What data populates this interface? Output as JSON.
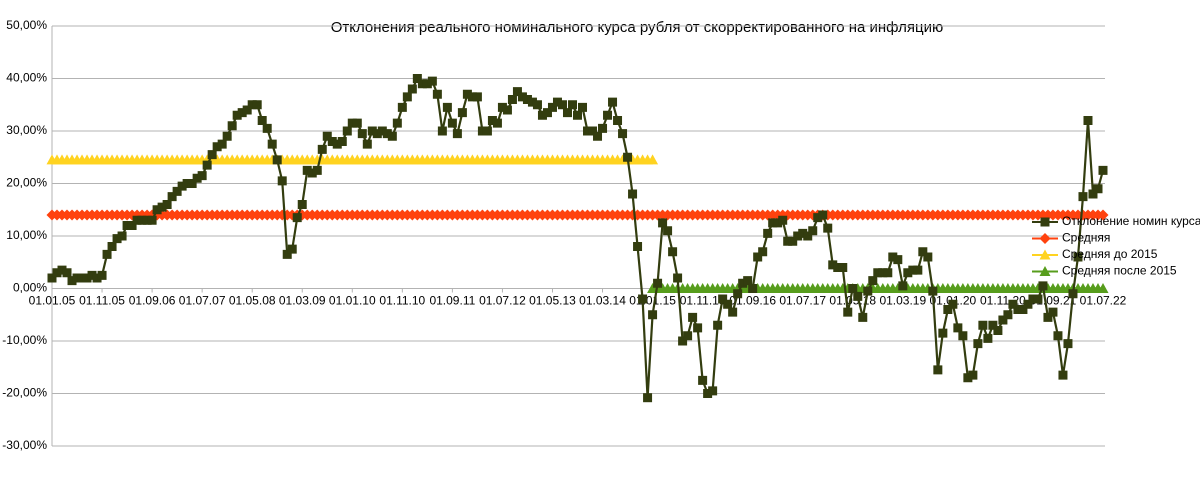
{
  "chart_data": {
    "type": "line",
    "title": "Отклонения реального номинального курса рубля от скорректированного на инфляцию",
    "categories": [
      "01.01.05",
      null,
      null,
      null,
      null,
      null,
      null,
      null,
      null,
      null,
      "01.11.05",
      null,
      null,
      null,
      null,
      null,
      null,
      null,
      null,
      null,
      "01.09.06",
      null,
      null,
      null,
      null,
      null,
      null,
      null,
      null,
      null,
      "01.07.07",
      null,
      null,
      null,
      null,
      null,
      null,
      null,
      null,
      null,
      "01.05.08",
      null,
      null,
      null,
      null,
      null,
      null,
      null,
      null,
      null,
      "01.03.09",
      null,
      null,
      null,
      null,
      null,
      null,
      null,
      null,
      null,
      "01.01.10",
      null,
      null,
      null,
      null,
      null,
      null,
      null,
      null,
      null,
      "01.11.10",
      null,
      null,
      null,
      null,
      null,
      null,
      null,
      null,
      null,
      "01.09.11",
      null,
      null,
      null,
      null,
      null,
      null,
      null,
      null,
      null,
      "01.07.12",
      null,
      null,
      null,
      null,
      null,
      null,
      null,
      null,
      null,
      "01.05.13",
      null,
      null,
      null,
      null,
      null,
      null,
      null,
      null,
      null,
      "01.03.14",
      null,
      null,
      null,
      null,
      null,
      null,
      null,
      null,
      null,
      "01.01.15",
      null,
      null,
      null,
      null,
      null,
      null,
      null,
      null,
      null,
      "01.11.15",
      null,
      null,
      null,
      null,
      null,
      null,
      null,
      null,
      null,
      "01.09.16",
      null,
      null,
      null,
      null,
      null,
      null,
      null,
      null,
      null,
      "01.07.17",
      null,
      null,
      null,
      null,
      null,
      null,
      null,
      null,
      null,
      "01.05.18",
      null,
      null,
      null,
      null,
      null,
      null,
      null,
      null,
      null,
      "01.03.19",
      null,
      null,
      null,
      null,
      null,
      null,
      null,
      null,
      null,
      "01.01.20",
      null,
      null,
      null,
      null,
      null,
      null,
      null,
      null,
      null,
      "01.11.20",
      null,
      null,
      null,
      null,
      null,
      null,
      null,
      null,
      null,
      "01.09.21",
      null,
      null,
      null,
      null,
      null,
      null,
      null,
      null,
      null,
      "01.07.22"
    ],
    "series": [
      {
        "name": "Отклонение номин курса с",
        "color": "#333d0f",
        "marker": "square",
        "values": [
          2,
          3,
          3.5,
          3,
          1.5,
          2,
          2,
          2,
          2.5,
          2,
          2.5,
          6.5,
          8,
          9.5,
          10,
          12,
          12,
          13,
          13,
          13,
          13,
          15,
          15.5,
          16,
          17.5,
          18.5,
          19.5,
          20,
          20,
          21,
          21.5,
          23.5,
          25.5,
          27,
          27.5,
          29,
          31,
          33,
          33.5,
          34,
          35,
          35,
          32,
          30.5,
          27.5,
          24.5,
          20.5,
          6.5,
          7.5,
          13.5,
          16,
          22.5,
          22,
          22.5,
          26.5,
          29,
          28,
          27.5,
          28,
          30,
          31.5,
          31.5,
          29.5,
          27.5,
          30,
          29.5,
          30,
          29.5,
          29,
          31.5,
          34.5,
          36.5,
          38,
          40,
          39,
          39,
          39.5,
          37,
          30,
          34.5,
          31.5,
          29.5,
          33.5,
          37,
          36.5,
          36.5,
          30,
          30,
          32,
          31.5,
          34.5,
          34,
          36,
          37.5,
          36.5,
          36,
          35.5,
          35,
          33,
          33.5,
          34.5,
          35.5,
          35,
          33.5,
          35,
          33,
          34.5,
          30,
          30,
          29,
          30.5,
          33,
          35.5,
          32,
          29.5,
          25,
          18,
          8,
          -2,
          -20.8,
          -5,
          1,
          12.5,
          11,
          7,
          2,
          -10,
          -9,
          -5.5,
          -7.5,
          -17.5,
          -20,
          -19.5,
          -7,
          -2,
          -3,
          -4.5,
          -1,
          1,
          1.5,
          0,
          6,
          7,
          10.5,
          12.5,
          12.5,
          13,
          9,
          9,
          10,
          10.5,
          10,
          11,
          13.5,
          14,
          11.5,
          4.5,
          4,
          4,
          -4.5,
          0,
          -1.5,
          -5.5,
          -0.5,
          1.5,
          3,
          3,
          3,
          6,
          5.5,
          0.5,
          3,
          3.5,
          3.5,
          7,
          6,
          -0.5,
          -15.5,
          -8.5,
          -4,
          -3,
          -7.5,
          -9,
          -17,
          -16.5,
          -10.5,
          -7,
          -9.5,
          -7,
          -8,
          -6,
          -5,
          -3,
          -4,
          -4,
          -3,
          -2,
          -2,
          0.5,
          -5.5,
          -4.5,
          -9,
          -16.5,
          -10.5,
          -1,
          6,
          17.5,
          32,
          18,
          19,
          22.5
        ]
      },
      {
        "name": "Средняя",
        "color": "#ff420e",
        "marker": "diamond",
        "values": [
          14,
          14,
          14,
          14,
          14,
          14,
          14,
          14,
          14,
          14,
          14,
          14,
          14,
          14,
          14,
          14,
          14,
          14,
          14,
          14,
          14,
          14,
          14,
          14,
          14,
          14,
          14,
          14,
          14,
          14,
          14,
          14,
          14,
          14,
          14,
          14,
          14,
          14,
          14,
          14,
          14,
          14,
          14,
          14,
          14,
          14,
          14,
          14,
          14,
          14,
          14,
          14,
          14,
          14,
          14,
          14,
          14,
          14,
          14,
          14,
          14,
          14,
          14,
          14,
          14,
          14,
          14,
          14,
          14,
          14,
          14,
          14,
          14,
          14,
          14,
          14,
          14,
          14,
          14,
          14,
          14,
          14,
          14,
          14,
          14,
          14,
          14,
          14,
          14,
          14,
          14,
          14,
          14,
          14,
          14,
          14,
          14,
          14,
          14,
          14,
          14,
          14,
          14,
          14,
          14,
          14,
          14,
          14,
          14,
          14,
          14,
          14,
          14,
          14,
          14,
          14,
          14,
          14,
          14,
          14,
          14,
          14,
          14,
          14,
          14,
          14,
          14,
          14,
          14,
          14,
          14,
          14,
          14,
          14,
          14,
          14,
          14,
          14,
          14,
          14,
          14,
          14,
          14,
          14,
          14,
          14,
          14,
          14,
          14,
          14,
          14,
          14,
          14,
          14,
          14,
          14,
          14,
          14,
          14,
          14,
          14,
          14,
          14,
          14,
          14,
          14,
          14,
          14,
          14,
          14,
          14,
          14,
          14,
          14,
          14,
          14,
          14,
          14,
          14,
          14,
          14,
          14,
          14,
          14,
          14,
          14,
          14,
          14,
          14,
          14,
          14,
          14,
          14,
          14,
          14,
          14,
          14,
          14,
          14,
          14,
          14,
          14,
          14,
          14,
          14,
          14,
          14,
          14,
          14,
          14,
          14
        ]
      },
      {
        "name": "Средняя до 2015",
        "color": "#ffd320",
        "marker": "triangle",
        "values": [
          24.5,
          24.5,
          24.5,
          24.5,
          24.5,
          24.5,
          24.5,
          24.5,
          24.5,
          24.5,
          24.5,
          24.5,
          24.5,
          24.5,
          24.5,
          24.5,
          24.5,
          24.5,
          24.5,
          24.5,
          24.5,
          24.5,
          24.5,
          24.5,
          24.5,
          24.5,
          24.5,
          24.5,
          24.5,
          24.5,
          24.5,
          24.5,
          24.5,
          24.5,
          24.5,
          24.5,
          24.5,
          24.5,
          24.5,
          24.5,
          24.5,
          24.5,
          24.5,
          24.5,
          24.5,
          24.5,
          24.5,
          24.5,
          24.5,
          24.5,
          24.5,
          24.5,
          24.5,
          24.5,
          24.5,
          24.5,
          24.5,
          24.5,
          24.5,
          24.5,
          24.5,
          24.5,
          24.5,
          24.5,
          24.5,
          24.5,
          24.5,
          24.5,
          24.5,
          24.5,
          24.5,
          24.5,
          24.5,
          24.5,
          24.5,
          24.5,
          24.5,
          24.5,
          24.5,
          24.5,
          24.5,
          24.5,
          24.5,
          24.5,
          24.5,
          24.5,
          24.5,
          24.5,
          24.5,
          24.5,
          24.5,
          24.5,
          24.5,
          24.5,
          24.5,
          24.5,
          24.5,
          24.5,
          24.5,
          24.5,
          24.5,
          24.5,
          24.5,
          24.5,
          24.5,
          24.5,
          24.5,
          24.5,
          24.5,
          24.5,
          24.5,
          24.5,
          24.5,
          24.5,
          24.5,
          24.5,
          24.5,
          24.5,
          24.5,
          24.5,
          24.5,
          null,
          null,
          null,
          null,
          null,
          null,
          null,
          null,
          null,
          null,
          null,
          null,
          null,
          null,
          null,
          null,
          null,
          null,
          null,
          null,
          null,
          null,
          null,
          null,
          null,
          null,
          null,
          null,
          null,
          null,
          null,
          null,
          null,
          null,
          null,
          null,
          null,
          null,
          null,
          null,
          null,
          null,
          null,
          null,
          null,
          null,
          null,
          null,
          null,
          null,
          null,
          null,
          null,
          null,
          null,
          null,
          null,
          null,
          null,
          null,
          null,
          null,
          null,
          null,
          null,
          null,
          null,
          null,
          null,
          null,
          null,
          null,
          null,
          null,
          null,
          null,
          null,
          null,
          null,
          null,
          null,
          null,
          null,
          null,
          null,
          null,
          null,
          null,
          null,
          null
        ]
      },
      {
        "name": "Средняя  после 2015",
        "color": "#579d1c",
        "marker": "triangle",
        "values": [
          null,
          null,
          null,
          null,
          null,
          null,
          null,
          null,
          null,
          null,
          null,
          null,
          null,
          null,
          null,
          null,
          null,
          null,
          null,
          null,
          null,
          null,
          null,
          null,
          null,
          null,
          null,
          null,
          null,
          null,
          null,
          null,
          null,
          null,
          null,
          null,
          null,
          null,
          null,
          null,
          null,
          null,
          null,
          null,
          null,
          null,
          null,
          null,
          null,
          null,
          null,
          null,
          null,
          null,
          null,
          null,
          null,
          null,
          null,
          null,
          null,
          null,
          null,
          null,
          null,
          null,
          null,
          null,
          null,
          null,
          null,
          null,
          null,
          null,
          null,
          null,
          null,
          null,
          null,
          null,
          null,
          null,
          null,
          null,
          null,
          null,
          null,
          null,
          null,
          null,
          null,
          null,
          null,
          null,
          null,
          null,
          null,
          null,
          null,
          null,
          null,
          null,
          null,
          null,
          null,
          null,
          null,
          null,
          null,
          null,
          null,
          null,
          null,
          null,
          null,
          null,
          null,
          null,
          null,
          null,
          0,
          0,
          0,
          0,
          0,
          0,
          0,
          0,
          0,
          0,
          0,
          0,
          0,
          0,
          0,
          0,
          0,
          0,
          0,
          0,
          0,
          0,
          0,
          0,
          0,
          0,
          0,
          0,
          0,
          0,
          0,
          0,
          0,
          0,
          0,
          0,
          0,
          0,
          0,
          0,
          0,
          0,
          0,
          0,
          0,
          0,
          0,
          0,
          0,
          0,
          0,
          0,
          0,
          0,
          0,
          0,
          0,
          0,
          0,
          0,
          0,
          0,
          0,
          0,
          0,
          0,
          0,
          0,
          0,
          0,
          0,
          0,
          0,
          0,
          0,
          0,
          0,
          0,
          0,
          0,
          0,
          0,
          0,
          0,
          0,
          0,
          0,
          0,
          0,
          0,
          0
        ]
      }
    ],
    "ylim": [
      -30,
      50
    ],
    "yticks": [
      {
        "value": -30,
        "label": "-30,00%"
      },
      {
        "value": -20,
        "label": "-20,00%"
      },
      {
        "value": -10,
        "label": "-10,00%"
      },
      {
        "value": 0,
        "label": "0,00%"
      },
      {
        "value": 10,
        "label": "10,00%"
      },
      {
        "value": 20,
        "label": "20,00%"
      },
      {
        "value": 30,
        "label": "30,00%"
      },
      {
        "value": 40,
        "label": "40,00%"
      },
      {
        "value": 50,
        "label": "50,00%"
      }
    ],
    "grid": true,
    "legend": "right"
  }
}
